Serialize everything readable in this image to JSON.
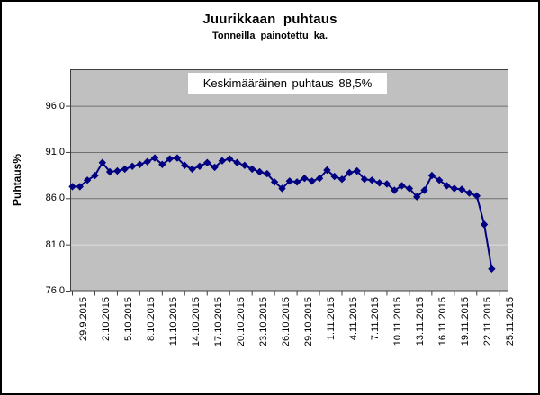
{
  "chart_data": {
    "type": "line",
    "title": "Juurikkaan puhtaus",
    "subtitle": "Tonneilla  painotettu  ka.",
    "annotation": "Keskimääräinen puhtaus 88,5%",
    "ylabel": "Puhtaus%",
    "ylim": [
      76,
      100
    ],
    "grid": "horizontal",
    "legend": "none",
    "colors": {
      "series": "#000080",
      "plot_background": "#c0c0c0",
      "axis": "#3f3f3f",
      "gridline_major": "#707070",
      "gridline_light": "#dcdcdc"
    },
    "yticks": [
      {
        "value": 96.0,
        "label": "96,0",
        "grid": "major"
      },
      {
        "value": 91.0,
        "label": "91,0",
        "grid": "major"
      },
      {
        "value": 86.0,
        "label": "86,0",
        "grid": "major"
      },
      {
        "value": 81.0,
        "label": "81,0",
        "grid": "light"
      },
      {
        "value": 76.0,
        "label": "76,0",
        "grid": "none"
      }
    ],
    "x_tick_interval_days": 3,
    "x_tick_labels": [
      "29.9.2015",
      "2.10.2015",
      "5.10.2015",
      "8.10.2015",
      "11.10.2015",
      "14.10.2015",
      "17.10.2015",
      "20.10.2015",
      "23.10.2015",
      "26.10.2015",
      "29.10.2015",
      "1.11.2015",
      "4.11.2015",
      "7.11.2015",
      "10.11.2015",
      "13.11.2015",
      "16.11.2015",
      "19.11.2015",
      "22.11.2015",
      "25.11.2015"
    ],
    "series": [
      {
        "name": "Puhtaus%",
        "marker": "diamond",
        "dates": [
          "29.9.2015",
          "30.9.2015",
          "1.10.2015",
          "2.10.2015",
          "3.10.2015",
          "4.10.2015",
          "5.10.2015",
          "6.10.2015",
          "7.10.2015",
          "8.10.2015",
          "9.10.2015",
          "10.10.2015",
          "11.10.2015",
          "12.10.2015",
          "13.10.2015",
          "14.10.2015",
          "15.10.2015",
          "16.10.2015",
          "17.10.2015",
          "18.10.2015",
          "19.10.2015",
          "20.10.2015",
          "21.10.2015",
          "22.10.2015",
          "23.10.2015",
          "24.10.2015",
          "25.10.2015",
          "26.10.2015",
          "27.10.2015",
          "28.10.2015",
          "29.10.2015",
          "30.10.2015",
          "31.10.2015",
          "1.11.2015",
          "2.11.2015",
          "3.11.2015",
          "4.11.2015",
          "5.11.2015",
          "6.11.2015",
          "7.11.2015",
          "8.11.2015",
          "9.11.2015",
          "10.11.2015",
          "11.11.2015",
          "12.11.2015",
          "13.11.2015",
          "14.11.2015",
          "15.11.2015",
          "16.11.2015",
          "17.11.2015",
          "18.11.2015",
          "19.11.2015",
          "20.11.2015",
          "21.11.2015",
          "22.11.2015",
          "23.11.2015",
          "24.11.2015"
        ],
        "values": [
          87.3,
          87.3,
          88.0,
          88.5,
          89.9,
          88.9,
          89.0,
          89.2,
          89.5,
          89.7,
          90.0,
          90.4,
          89.7,
          90.3,
          90.4,
          89.6,
          89.2,
          89.5,
          89.9,
          89.4,
          90.1,
          90.3,
          89.9,
          89.6,
          89.2,
          88.9,
          88.7,
          87.8,
          87.1,
          87.9,
          87.8,
          88.2,
          87.9,
          88.2,
          89.1,
          88.4,
          88.1,
          88.8,
          89.0,
          88.1,
          88.0,
          87.7,
          87.6,
          86.9,
          87.4,
          87.1,
          86.2,
          86.9,
          88.5,
          88.0,
          87.4,
          87.1,
          87.0,
          86.6,
          86.3,
          83.2,
          78.4
        ]
      }
    ]
  }
}
